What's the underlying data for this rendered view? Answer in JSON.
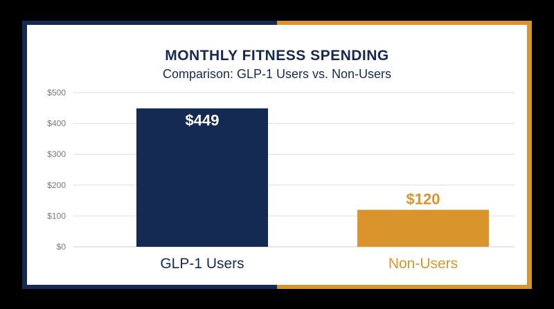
{
  "chart_data": {
    "type": "bar",
    "title": "MONTHLY FITNESS SPENDING",
    "subtitle": "Comparison: GLP-1 Users vs. Non-Users",
    "categories": [
      "GLP-1 Users",
      "Non-Users"
    ],
    "values": [
      449,
      120
    ],
    "value_labels": [
      "$449",
      "$120"
    ],
    "y_ticks": [
      0,
      100,
      200,
      300,
      400,
      500
    ],
    "y_tick_labels": [
      "$0",
      "$100",
      "$200",
      "$300",
      "$400",
      "$500"
    ],
    "ylim": [
      0,
      500
    ],
    "grid": true,
    "colors": {
      "navy": "#142a52",
      "gold": "#d9952c",
      "grid": "#dddddd",
      "tick_text": "#777777"
    }
  }
}
